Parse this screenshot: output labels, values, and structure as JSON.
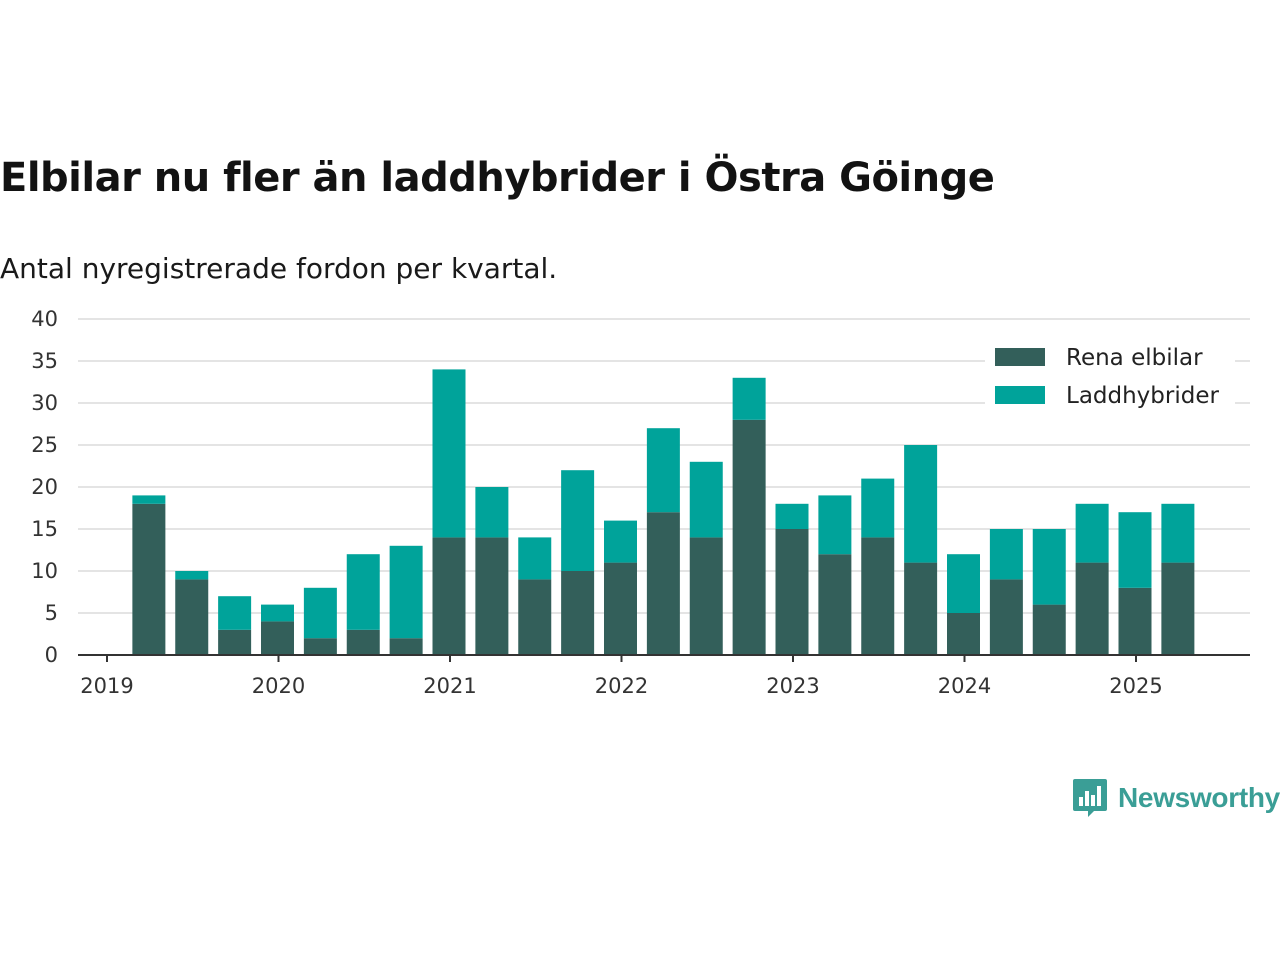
{
  "header": {
    "title": "Elbilar nu fler än laddhybrider i Östra Göinge",
    "subtitle": "Antal nyregistrerade fordon per kvartal."
  },
  "brand": {
    "name": "Newsworthy",
    "icon": "newsworthy-logo-icon",
    "color": "#3a9e96"
  },
  "chart_data": {
    "type": "bar",
    "stacked": true,
    "title": "",
    "xlabel": "",
    "ylabel": "",
    "ylim": [
      0,
      40
    ],
    "yticks": [
      0,
      5,
      10,
      15,
      20,
      25,
      30,
      35,
      40
    ],
    "xticks": [
      "2019",
      "2020",
      "2021",
      "2022",
      "2023",
      "2024",
      "2025"
    ],
    "grid": true,
    "legend_position": "top-right",
    "categories": [
      "2019 Q2",
      "2019 Q3",
      "2019 Q4",
      "2020 Q1",
      "2020 Q2",
      "2020 Q3",
      "2020 Q4",
      "2021 Q1",
      "2021 Q2",
      "2021 Q3",
      "2021 Q4",
      "2022 Q1",
      "2022 Q2",
      "2022 Q3",
      "2022 Q4",
      "2023 Q1",
      "2023 Q2",
      "2023 Q3",
      "2023 Q4",
      "2024 Q1",
      "2024 Q2",
      "2024 Q3",
      "2024 Q4",
      "2025 Q1",
      "2025 Q2"
    ],
    "series": [
      {
        "name": "Rena elbilar",
        "color": "#335f5a",
        "values": [
          18,
          9,
          3,
          4,
          2,
          3,
          2,
          14,
          14,
          9,
          10,
          11,
          17,
          14,
          28,
          15,
          12,
          14,
          11,
          5,
          9,
          6,
          11,
          8,
          11
        ]
      },
      {
        "name": "Laddhybrider",
        "color": "#00a39a",
        "values": [
          1,
          1,
          4,
          2,
          6,
          9,
          11,
          20,
          6,
          5,
          12,
          5,
          10,
          9,
          5,
          3,
          7,
          7,
          14,
          7,
          6,
          9,
          7,
          9,
          7
        ]
      }
    ]
  }
}
